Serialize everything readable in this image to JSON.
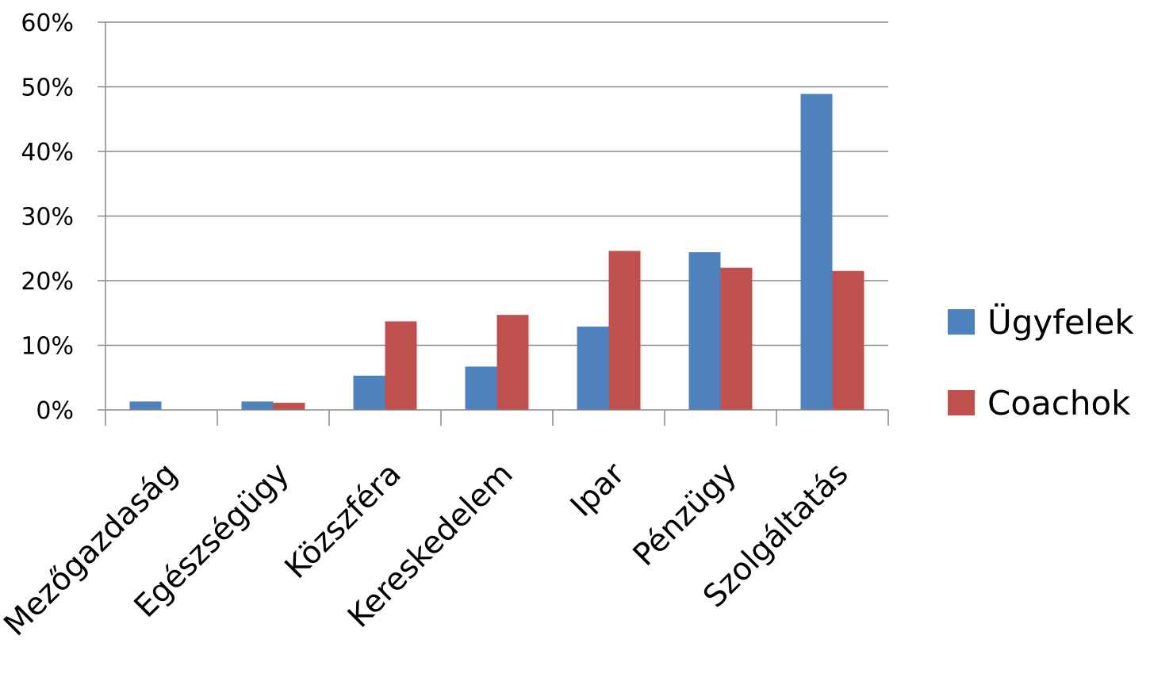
{
  "chart_data": {
    "type": "bar",
    "title": "",
    "xlabel": "",
    "ylabel": "",
    "categories": [
      "Mezőgazdaság",
      "Egészségügy",
      "Közszféra",
      "Kereskedelem",
      "Ipar",
      "Pénzügy",
      "Szolgáltatás"
    ],
    "series": [
      {
        "name": "Ügyfelek",
        "color": "#4F81BD",
        "values": [
          1.3,
          1.3,
          5.3,
          6.7,
          12.9,
          24.4,
          48.9
        ]
      },
      {
        "name": "Coachok",
        "color": "#C0504D",
        "values": [
          0.0,
          1.1,
          13.7,
          14.7,
          24.6,
          22.0,
          21.5
        ]
      }
    ],
    "ylim": [
      0,
      60
    ],
    "yticks": [
      0,
      10,
      20,
      30,
      40,
      50,
      60
    ],
    "ytick_labels": [
      "0%",
      "10%",
      "20%",
      "30%",
      "40%",
      "50%",
      "60%"
    ],
    "grid": true,
    "legend_position": "right"
  }
}
